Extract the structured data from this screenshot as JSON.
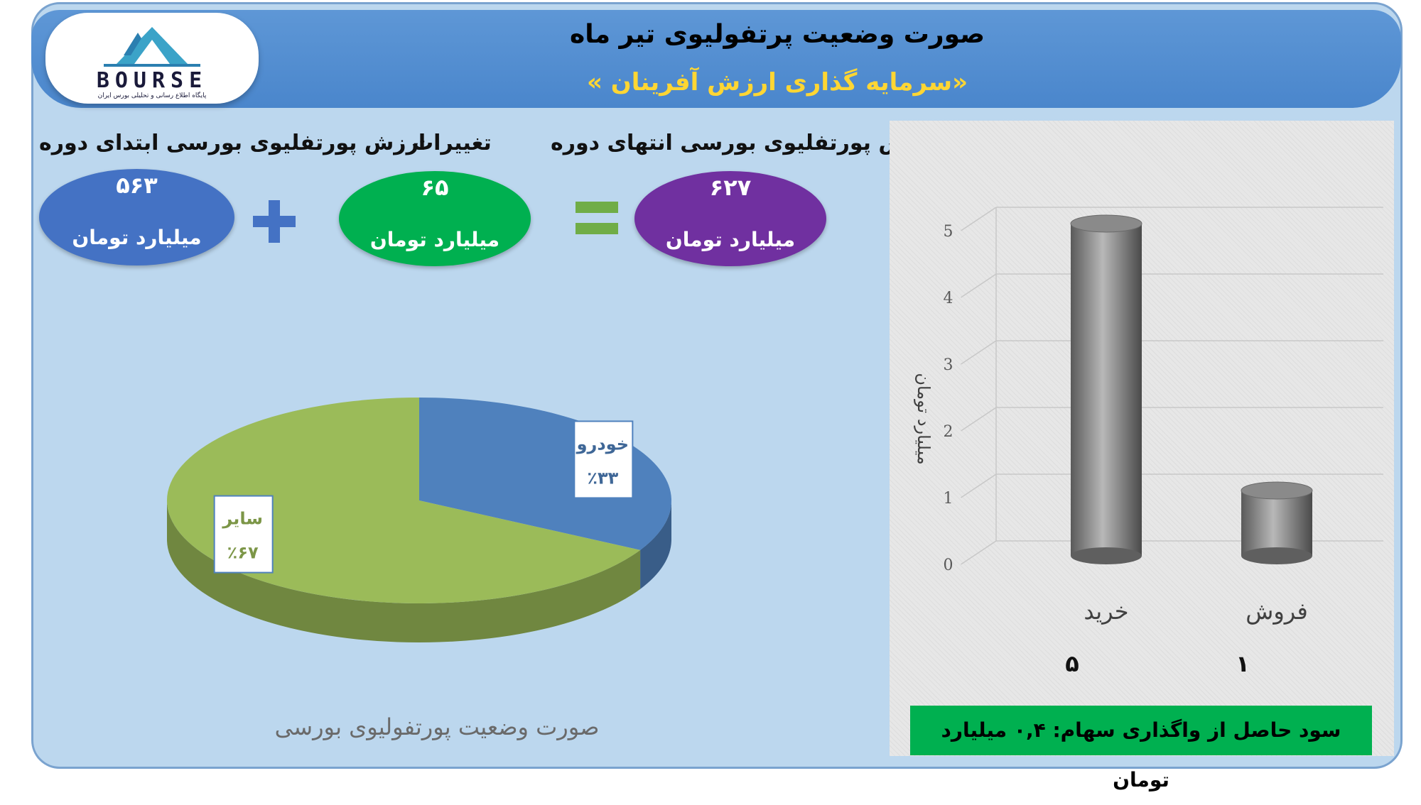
{
  "header": {
    "title": "صورت وضعیت پرتفولیوی تیر ماه",
    "subtitle": "«سرمایه گذاری ارزش آفرینان »"
  },
  "logo": {
    "text": "BOURSE",
    "tagline": "پایگاه اطلاع رسانی و تحلیلی بورس ایران"
  },
  "metrics": {
    "start": {
      "label": "ارزش پورتفلیوی بورسی ابتدای دوره",
      "value": "۵۶۳",
      "unit": "میلیارد تومان",
      "color": "#4472c4"
    },
    "change": {
      "label": "تغییرات",
      "value": "۶۵",
      "unit": "میلیارد تومان",
      "color": "#00b050"
    },
    "end": {
      "label": "ارزش پورتفلیوی بورسی انتهای دوره",
      "value": "۶۲۷",
      "unit": "میلیارد تومان",
      "color": "#7030a0"
    },
    "plus_color": "#4472c4",
    "equals_color": "#70ad47"
  },
  "chart_data": [
    {
      "type": "pie",
      "title": "صورت وضعیت پورتفولیوی بورسی",
      "slices": [
        {
          "label": "خودرو",
          "value": 33,
          "display": "٪۳۳",
          "color": "#4f81bd"
        },
        {
          "label": "سایر",
          "value": 67,
          "display": "٪۶۷",
          "color": "#9bbb59"
        }
      ]
    },
    {
      "type": "bar",
      "categories": [
        "خرید",
        "فروش"
      ],
      "values": [
        5,
        1
      ],
      "value_labels": [
        "۵",
        "۱"
      ],
      "ylabel": "میلیارد تومان",
      "ylim": [
        0,
        5
      ],
      "yticks": [
        "0",
        "1",
        "2",
        "3",
        "4",
        "5"
      ],
      "grid": true,
      "bar_color": "#8c8c8c"
    }
  ],
  "profit_note": "سود حاصل از واگذاری سهام: ۰,۴ میلیارد تومان"
}
